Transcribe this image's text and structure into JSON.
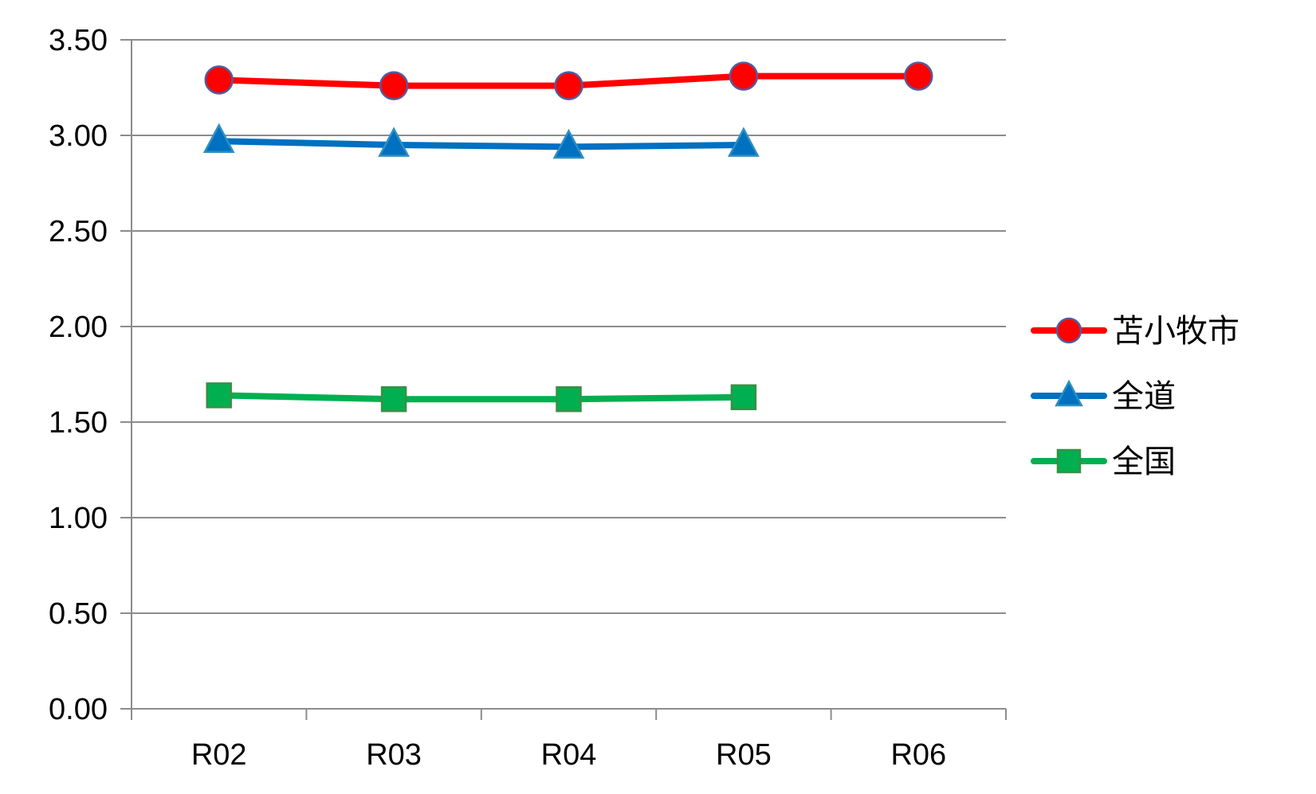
{
  "chart_data": {
    "type": "line",
    "title": "",
    "xlabel": "",
    "ylabel": "",
    "categories": [
      "R02",
      "R03",
      "R04",
      "R05",
      "R06"
    ],
    "ylim": [
      0,
      3.5
    ],
    "yticks": [
      "0.00",
      "0.50",
      "1.00",
      "1.50",
      "2.00",
      "2.50",
      "3.00",
      "3.50"
    ],
    "grid": true,
    "legend_position": "right",
    "series": [
      {
        "name": "苫小牧市",
        "color": "#ff0000",
        "marker": "circle",
        "values": [
          3.29,
          3.26,
          3.26,
          3.31,
          3.31
        ]
      },
      {
        "name": "全道",
        "color": "#0070c0",
        "marker": "triangle",
        "values": [
          2.97,
          2.95,
          2.94,
          2.95,
          null
        ]
      },
      {
        "name": "全国",
        "color": "#00b050",
        "marker": "square",
        "values": [
          1.64,
          1.62,
          1.62,
          1.63,
          null
        ]
      }
    ]
  }
}
